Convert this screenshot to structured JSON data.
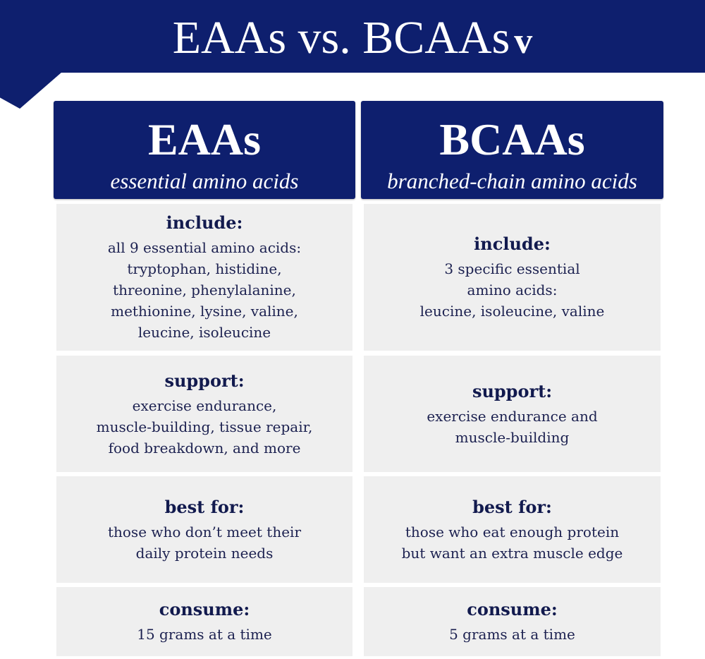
{
  "header": {
    "title": "EAAs vs. BCAAs",
    "logo": "v"
  },
  "columns": [
    {
      "title": "EAAs",
      "subtitle": "essential amino acids",
      "rows": [
        {
          "label": "include:",
          "text": "all 9 essential amino acids:\ntryptophan, histidine,\nthreonine, phenylalanine,\nmethionine, lysine, valine,\nleucine, isoleucine"
        },
        {
          "label": "support:",
          "text": "exercise endurance,\nmuscle-building, tissue repair,\nfood breakdown, and more"
        },
        {
          "label": "best for:",
          "text": "those who don’t meet their\ndaily protein needs"
        },
        {
          "label": "consume:",
          "text": "15 grams at a time"
        }
      ]
    },
    {
      "title": "BCAAs",
      "subtitle": "branched-chain amino acids",
      "rows": [
        {
          "label": "include:",
          "text": "3 specific essential\namino acids:\nleucine, isoleucine, valine"
        },
        {
          "label": "support:",
          "text": "exercise endurance and\nmuscle-building"
        },
        {
          "label": "best for:",
          "text": "those who eat enough protein\nbut want an extra muscle edge"
        },
        {
          "label": "consume:",
          "text": "5 grams at a time"
        }
      ]
    }
  ],
  "colors": {
    "navy": "#0e1f6e",
    "cell": "#efefef",
    "text": "#1c2150"
  }
}
